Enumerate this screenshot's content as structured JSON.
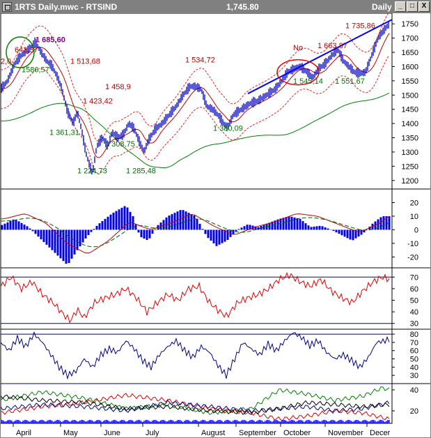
{
  "window": {
    "title": "1RTS Daily.mwc - RTSIND",
    "last_value": "1,745.80",
    "period": "Daily",
    "min_glyph": "_",
    "max_glyph": "□",
    "close_glyph": "X"
  },
  "colors": {
    "price": "#0000c0",
    "ma": "#c00000",
    "band": "#e02020",
    "long_ma": "#008000",
    "trendline": "#0000ff",
    "highlight_red": "#e00000",
    "highlight_green": "#008000",
    "label_red": "#c00000",
    "label_green": "#007000",
    "label_purple": "#800080"
  },
  "annotations": {
    "note": "No"
  },
  "chart_data": [
    {
      "type": "candlestick",
      "panel": "price",
      "x_labels": [
        "April",
        "May",
        "June",
        "July",
        "August",
        "September",
        "October",
        "November",
        "Decer"
      ],
      "y_ticks": [
        1200,
        1250,
        1300,
        1350,
        1400,
        1450,
        1500,
        1550,
        1600,
        1650,
        1700,
        1750
      ],
      "ylim": [
        1170,
        1775
      ],
      "price_path": [
        [
          0,
          1520
        ],
        [
          10,
          1550
        ],
        [
          20,
          1610
        ],
        [
          30,
          1640
        ],
        [
          40,
          1660
        ],
        [
          50,
          1685
        ],
        [
          58,
          1650
        ],
        [
          66,
          1620
        ],
        [
          74,
          1600
        ],
        [
          82,
          1560
        ],
        [
          88,
          1520
        ],
        [
          96,
          1440
        ],
        [
          104,
          1400
        ],
        [
          110,
          1440
        ],
        [
          116,
          1380
        ],
        [
          122,
          1300
        ],
        [
          128,
          1250
        ],
        [
          132,
          1225
        ],
        [
          138,
          1320
        ],
        [
          146,
          1350
        ],
        [
          154,
          1320
        ],
        [
          160,
          1370
        ],
        [
          168,
          1350
        ],
        [
          176,
          1360
        ],
        [
          184,
          1400
        ],
        [
          192,
          1380
        ],
        [
          200,
          1330
        ],
        [
          206,
          1300
        ],
        [
          212,
          1340
        ],
        [
          222,
          1380
        ],
        [
          232,
          1400
        ],
        [
          242,
          1430
        ],
        [
          252,
          1460
        ],
        [
          262,
          1500
        ],
        [
          272,
          1530
        ],
        [
          280,
          1530
        ],
        [
          288,
          1520
        ],
        [
          296,
          1460
        ],
        [
          304,
          1450
        ],
        [
          312,
          1430
        ],
        [
          320,
          1400
        ],
        [
          326,
          1385
        ],
        [
          334,
          1430
        ],
        [
          346,
          1450
        ],
        [
          358,
          1470
        ],
        [
          370,
          1480
        ],
        [
          382,
          1500
        ],
        [
          394,
          1520
        ],
        [
          404,
          1550
        ],
        [
          412,
          1580
        ],
        [
          420,
          1590
        ],
        [
          430,
          1600
        ],
        [
          440,
          1580
        ],
        [
          448,
          1560
        ],
        [
          456,
          1590
        ],
        [
          466,
          1610
        ],
        [
          476,
          1640
        ],
        [
          484,
          1660
        ],
        [
          492,
          1620
        ],
        [
          500,
          1600
        ],
        [
          508,
          1580
        ],
        [
          516,
          1575
        ],
        [
          524,
          1580
        ],
        [
          530,
          1620
        ],
        [
          536,
          1660
        ],
        [
          542,
          1700
        ],
        [
          548,
          1720
        ],
        [
          556,
          1745
        ]
      ],
      "series": [
        {
          "name": "",
          "label": "price"
        },
        {
          "name": "",
          "label": "moving average"
        },
        {
          "name": "",
          "label": "envelope upper"
        },
        {
          "name": "",
          "label": "envelope lower"
        },
        {
          "name": "",
          "label": "long moving average"
        }
      ],
      "value_labels": [
        {
          "text": "1 685,60",
          "color": "purple",
          "x": 50,
          "y": 1685
        },
        {
          "text": "643,37",
          "color": "red",
          "x": 20,
          "y": 1650
        },
        {
          "text": "1586,57",
          "color": "green",
          "x": 30,
          "y": 1580
        },
        {
          "text": "2,0",
          "color": "red",
          "x": 0,
          "y": 1610
        },
        {
          "text": "1 513,68",
          "color": "red",
          "x": 100,
          "y": 1610
        },
        {
          "text": "1 458,9",
          "color": "red",
          "x": 150,
          "y": 1520
        },
        {
          "text": "1 423,42",
          "color": "red",
          "x": 118,
          "y": 1470
        },
        {
          "text": "1 361,31",
          "color": "green",
          "x": 70,
          "y": 1360
        },
        {
          "text": "1 308,75",
          "color": "green",
          "x": 150,
          "y": 1320
        },
        {
          "text": "1 224,73",
          "color": "green",
          "x": 110,
          "y": 1225
        },
        {
          "text": "1 285,48",
          "color": "green",
          "x": 180,
          "y": 1225
        },
        {
          "text": "1 534,72",
          "color": "red",
          "x": 265,
          "y": 1615
        },
        {
          "text": "1 380,09",
          "color": "green",
          "x": 305,
          "y": 1375
        },
        {
          "text": "1 545,14",
          "color": "green",
          "x": 420,
          "y": 1540
        },
        {
          "text": "1 663,87",
          "color": "red",
          "x": 455,
          "y": 1665
        },
        {
          "text": "1 551,67",
          "color": "green",
          "x": 480,
          "y": 1540
        },
        {
          "text": "1 735,86",
          "color": "red",
          "x": 495,
          "y": 1735
        }
      ],
      "trendline": [
        [
          355,
          1505
        ],
        [
          562,
          1765
        ]
      ]
    },
    {
      "type": "bar",
      "panel": "macd",
      "y_ticks": [
        20,
        10,
        0,
        -10,
        -20
      ],
      "ylim": [
        -28,
        30
      ],
      "histogram_path": [
        [
          0,
          3
        ],
        [
          20,
          8
        ],
        [
          40,
          2
        ],
        [
          60,
          -8
        ],
        [
          80,
          -18
        ],
        [
          96,
          -26
        ],
        [
          110,
          -15
        ],
        [
          124,
          -5
        ],
        [
          140,
          4
        ],
        [
          160,
          12
        ],
        [
          180,
          18
        ],
        [
          190,
          10
        ],
        [
          200,
          -5
        ],
        [
          212,
          -8
        ],
        [
          225,
          3
        ],
        [
          240,
          10
        ],
        [
          260,
          15
        ],
        [
          280,
          10
        ],
        [
          296,
          -5
        ],
        [
          310,
          -12
        ],
        [
          325,
          -8
        ],
        [
          340,
          0
        ],
        [
          355,
          4
        ],
        [
          370,
          2
        ],
        [
          385,
          5
        ],
        [
          400,
          8
        ],
        [
          415,
          10
        ],
        [
          430,
          8
        ],
        [
          445,
          2
        ],
        [
          460,
          3
        ],
        [
          475,
          0
        ],
        [
          490,
          -4
        ],
        [
          505,
          -8
        ],
        [
          520,
          -3
        ],
        [
          535,
          5
        ],
        [
          548,
          10
        ],
        [
          558,
          10
        ]
      ],
      "signal_path": [
        [
          0,
          8
        ],
        [
          30,
          12
        ],
        [
          60,
          5
        ],
        [
          90,
          -10
        ],
        [
          120,
          -18
        ],
        [
          150,
          -8
        ],
        [
          180,
          6
        ],
        [
          210,
          0
        ],
        [
          240,
          5
        ],
        [
          270,
          12
        ],
        [
          300,
          3
        ],
        [
          330,
          -4
        ],
        [
          360,
          2
        ],
        [
          390,
          6
        ],
        [
          420,
          12
        ],
        [
          450,
          10
        ],
        [
          480,
          4
        ],
        [
          510,
          -2
        ],
        [
          540,
          5
        ],
        [
          558,
          12
        ]
      ]
    },
    {
      "type": "line",
      "panel": "rsi",
      "y_ticks": [
        70,
        60,
        50,
        40,
        30
      ],
      "ylim": [
        25,
        78
      ],
      "reference_lines": [
        70,
        30
      ],
      "path": [
        [
          0,
          62
        ],
        [
          15,
          70
        ],
        [
          30,
          60
        ],
        [
          45,
          66
        ],
        [
          60,
          55
        ],
        [
          75,
          48
        ],
        [
          90,
          38
        ],
        [
          100,
          32
        ],
        [
          110,
          42
        ],
        [
          120,
          35
        ],
        [
          135,
          48
        ],
        [
          150,
          52
        ],
        [
          165,
          55
        ],
        [
          180,
          60
        ],
        [
          195,
          52
        ],
        [
          210,
          40
        ],
        [
          225,
          48
        ],
        [
          240,
          55
        ],
        [
          255,
          50
        ],
        [
          270,
          60
        ],
        [
          285,
          62
        ],
        [
          300,
          48
        ],
        [
          315,
          40
        ],
        [
          325,
          36
        ],
        [
          340,
          48
        ],
        [
          355,
          52
        ],
        [
          370,
          55
        ],
        [
          385,
          60
        ],
        [
          400,
          68
        ],
        [
          415,
          72
        ],
        [
          430,
          66
        ],
        [
          445,
          62
        ],
        [
          460,
          68
        ],
        [
          475,
          58
        ],
        [
          490,
          52
        ],
        [
          505,
          48
        ],
        [
          520,
          58
        ],
        [
          535,
          66
        ],
        [
          548,
          70
        ],
        [
          558,
          68
        ]
      ]
    },
    {
      "type": "line",
      "panel": "stochastic",
      "y_ticks": [
        80,
        70,
        60,
        50,
        40,
        30
      ],
      "ylim": [
        20,
        86
      ],
      "path": [
        [
          0,
          70
        ],
        [
          12,
          60
        ],
        [
          24,
          75
        ],
        [
          36,
          65
        ],
        [
          48,
          80
        ],
        [
          60,
          70
        ],
        [
          72,
          55
        ],
        [
          84,
          40
        ],
        [
          96,
          30
        ],
        [
          108,
          35
        ],
        [
          120,
          50
        ],
        [
          132,
          40
        ],
        [
          144,
          55
        ],
        [
          156,
          62
        ],
        [
          168,
          58
        ],
        [
          180,
          72
        ],
        [
          192,
          62
        ],
        [
          204,
          48
        ],
        [
          216,
          40
        ],
        [
          228,
          55
        ],
        [
          240,
          65
        ],
        [
          252,
          72
        ],
        [
          264,
          60
        ],
        [
          276,
          52
        ],
        [
          288,
          65
        ],
        [
          300,
          58
        ],
        [
          312,
          42
        ],
        [
          324,
          30
        ],
        [
          336,
          50
        ],
        [
          348,
          70
        ],
        [
          360,
          62
        ],
        [
          372,
          55
        ],
        [
          384,
          68
        ],
        [
          396,
          60
        ],
        [
          408,
          72
        ],
        [
          420,
          82
        ],
        [
          432,
          76
        ],
        [
          444,
          66
        ],
        [
          456,
          72
        ],
        [
          468,
          58
        ],
        [
          480,
          50
        ],
        [
          492,
          55
        ],
        [
          504,
          48
        ],
        [
          516,
          40
        ],
        [
          528,
          52
        ],
        [
          540,
          70
        ],
        [
          552,
          72
        ],
        [
          558,
          74
        ]
      ]
    },
    {
      "type": "line",
      "panel": "directional",
      "y_ticks": [
        40,
        20
      ],
      "ylim": [
        8,
        46
      ],
      "series": [
        {
          "name": "",
          "color": "green",
          "path": [
            [
              0,
              30
            ],
            [
              60,
              38
            ],
            [
              120,
              32
            ],
            [
              180,
              22
            ],
            [
              240,
              26
            ],
            [
              300,
              18
            ],
            [
              360,
              22
            ],
            [
              400,
              40
            ],
            [
              440,
              36
            ],
            [
              480,
              30
            ],
            [
              520,
              34
            ],
            [
              548,
              42
            ],
            [
              558,
              40
            ]
          ]
        },
        {
          "name": "",
          "color": "red",
          "path": [
            [
              0,
              18
            ],
            [
              60,
              24
            ],
            [
              120,
              28
            ],
            [
              180,
              35
            ],
            [
              240,
              30
            ],
            [
              300,
              22
            ],
            [
              360,
              18
            ],
            [
              400,
              12
            ],
            [
              440,
              15
            ],
            [
              480,
              20
            ],
            [
              520,
              18
            ],
            [
              558,
              12
            ]
          ]
        },
        {
          "name": "",
          "color": "navy",
          "path": [
            [
              0,
              22
            ],
            [
              60,
              26
            ],
            [
              120,
              24
            ],
            [
              180,
              20
            ],
            [
              240,
              28
            ],
            [
              300,
              24
            ],
            [
              360,
              20
            ],
            [
              400,
              22
            ],
            [
              440,
              24
            ],
            [
              480,
              20
            ],
            [
              520,
              22
            ],
            [
              558,
              28
            ]
          ]
        },
        {
          "name": "",
          "color": "black",
          "path": [
            [
              0,
              34
            ],
            [
              60,
              30
            ],
            [
              120,
              28
            ],
            [
              180,
              22
            ],
            [
              240,
              24
            ],
            [
              300,
              20
            ],
            [
              360,
              18
            ],
            [
              400,
              22
            ],
            [
              440,
              28
            ],
            [
              480,
              26
            ],
            [
              520,
              24
            ],
            [
              558,
              26
            ]
          ]
        }
      ]
    }
  ]
}
